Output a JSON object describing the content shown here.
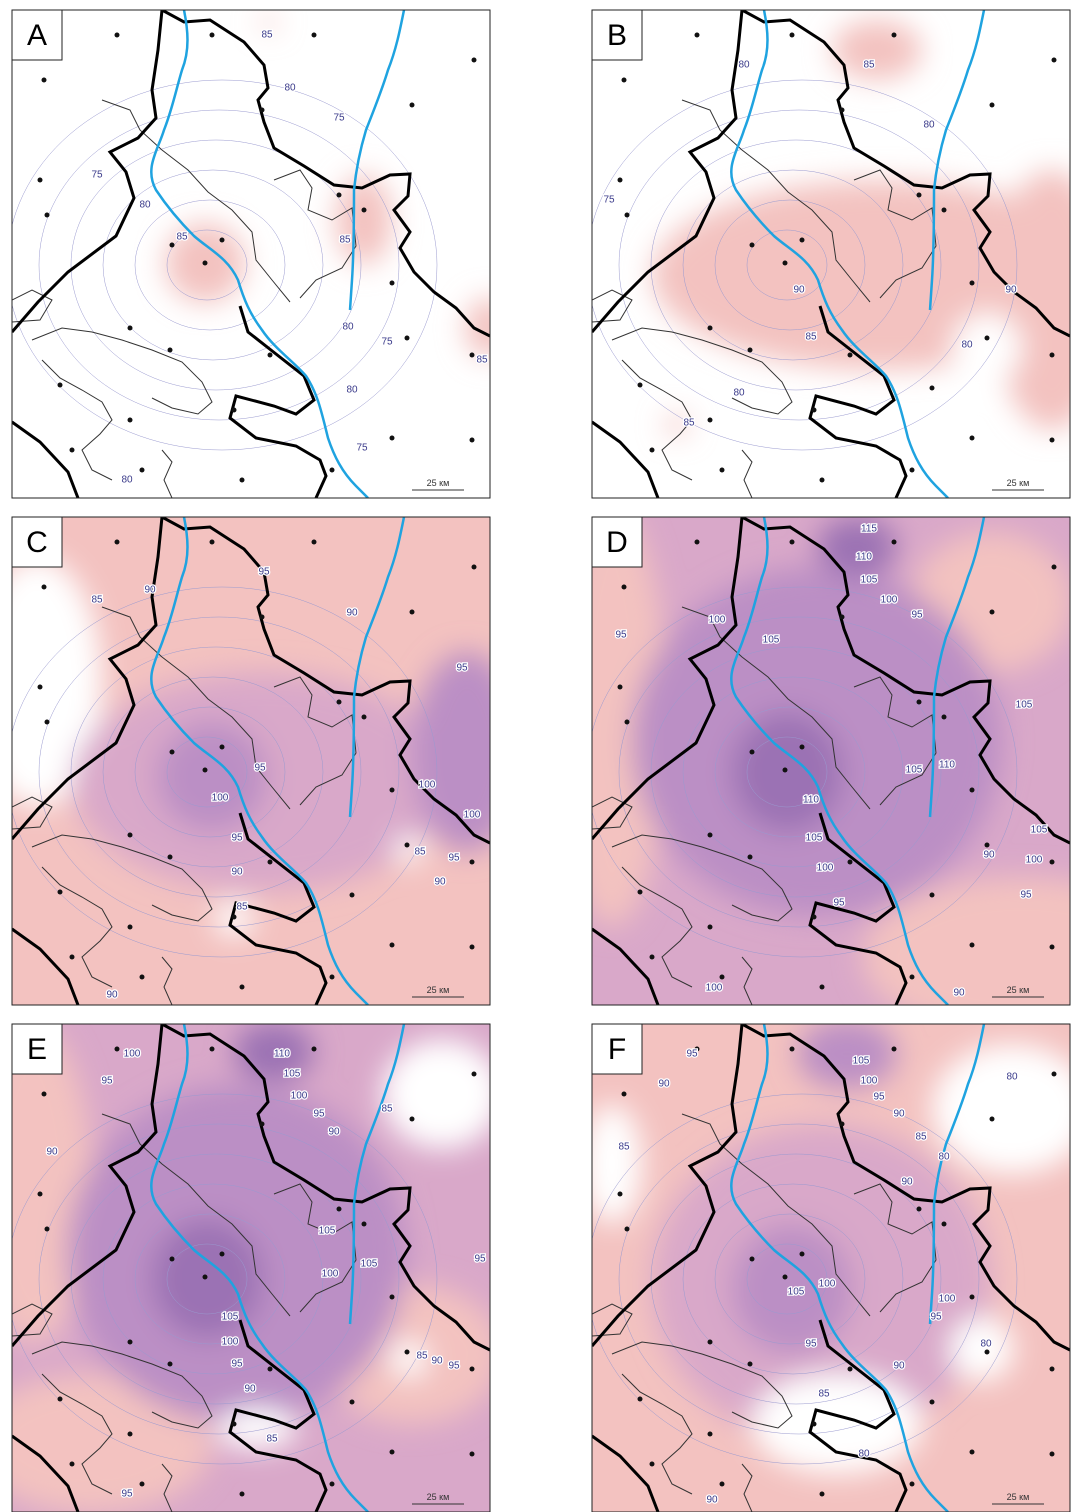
{
  "panels": [
    {
      "label": "A",
      "scale": "25 км",
      "contours": [
        "85",
        "80",
        "75",
        "75",
        "80",
        "85",
        "85",
        "80",
        "75",
        "85",
        "80",
        "75",
        "80"
      ]
    },
    {
      "label": "B",
      "scale": "25 км",
      "contours": [
        "80",
        "85",
        "80",
        "75",
        "90",
        "90",
        "85",
        "80",
        "80",
        "85"
      ]
    },
    {
      "label": "C",
      "scale": "25 км",
      "contours": [
        "85",
        "90",
        "95",
        "90",
        "95",
        "95",
        "100",
        "100",
        "100",
        "95",
        "85",
        "90",
        "95",
        "90",
        "85",
        "90"
      ]
    },
    {
      "label": "D",
      "scale": "25 км",
      "contours": [
        "115",
        "110",
        "105",
        "100",
        "95",
        "95",
        "100",
        "105",
        "105",
        "105",
        "110",
        "110",
        "105",
        "90",
        "100",
        "105",
        "100",
        "95",
        "95",
        "100",
        "90"
      ]
    },
    {
      "label": "E",
      "scale": "25 км",
      "contours": [
        "100",
        "95",
        "90",
        "110",
        "105",
        "100",
        "95",
        "90",
        "85",
        "105",
        "100",
        "105",
        "95",
        "105",
        "100",
        "95",
        "90",
        "85",
        "85",
        "90",
        "95",
        "95"
      ]
    },
    {
      "label": "F",
      "scale": "25 км",
      "contours": [
        "95",
        "90",
        "85",
        "105",
        "100",
        "95",
        "90",
        "85",
        "80",
        "80",
        "90",
        "105",
        "100",
        "100",
        "95",
        "95",
        "90",
        "80",
        "85",
        "80",
        "90"
      ]
    }
  ]
}
